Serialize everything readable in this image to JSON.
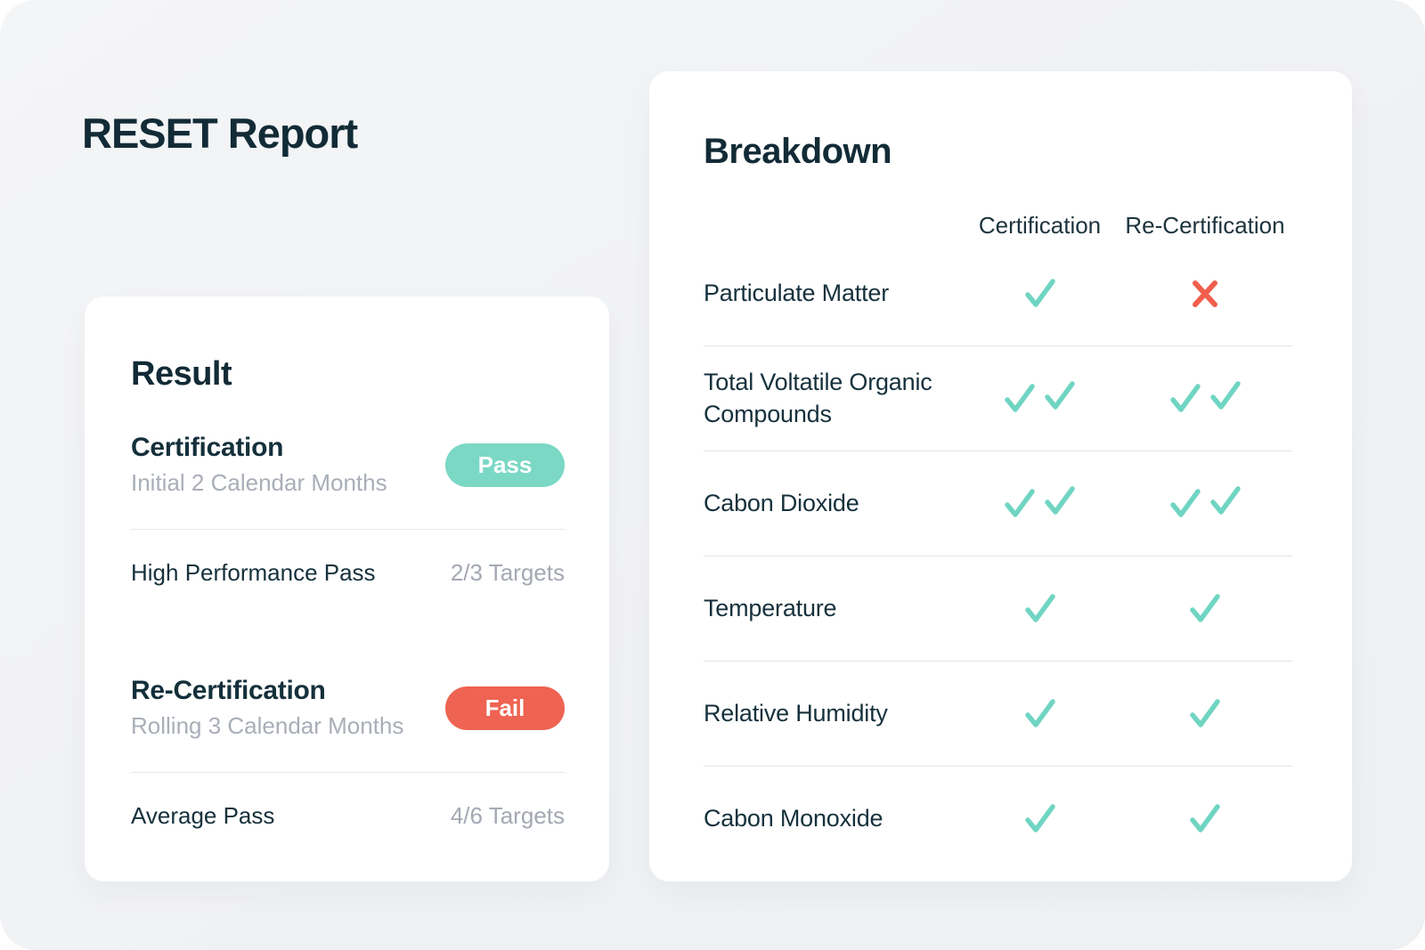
{
  "page": {
    "title": "RESET Report"
  },
  "colors": {
    "check_teal": "#6fd5c2",
    "cross_red": "#f15f4c",
    "pass_badge": "#7bd8c5",
    "fail_badge": "#ee6351"
  },
  "result_card": {
    "heading": "Result",
    "certification": {
      "title": "Certification",
      "subtitle": "Initial 2 Calendar Months",
      "badge_label": "Pass",
      "badge_status": "pass"
    },
    "high_performance": {
      "label": "High Performance Pass",
      "value": "2/3 Targets"
    },
    "recertification": {
      "title": "Re-Certification",
      "subtitle": "Rolling 3 Calendar Months",
      "badge_label": "Fail",
      "badge_status": "fail"
    },
    "average": {
      "label": "Average Pass",
      "value": "4/6 Targets"
    }
  },
  "breakdown_card": {
    "heading": "Breakdown",
    "columns": {
      "certification": "Certification",
      "recertification": "Re-Certification"
    },
    "rows": [
      {
        "label": "Particulate Matter",
        "certification": "check",
        "recertification": "cross"
      },
      {
        "label": "Total Voltatile Organic Compounds",
        "certification": "double-check",
        "recertification": "double-check"
      },
      {
        "label": "Cabon Dioxide",
        "certification": "double-check",
        "recertification": "double-check"
      },
      {
        "label": "Temperature",
        "certification": "check",
        "recertification": "check"
      },
      {
        "label": "Relative Humidity",
        "certification": "check",
        "recertification": "check"
      },
      {
        "label": "Cabon Monoxide",
        "certification": "check",
        "recertification": "check"
      }
    ]
  }
}
